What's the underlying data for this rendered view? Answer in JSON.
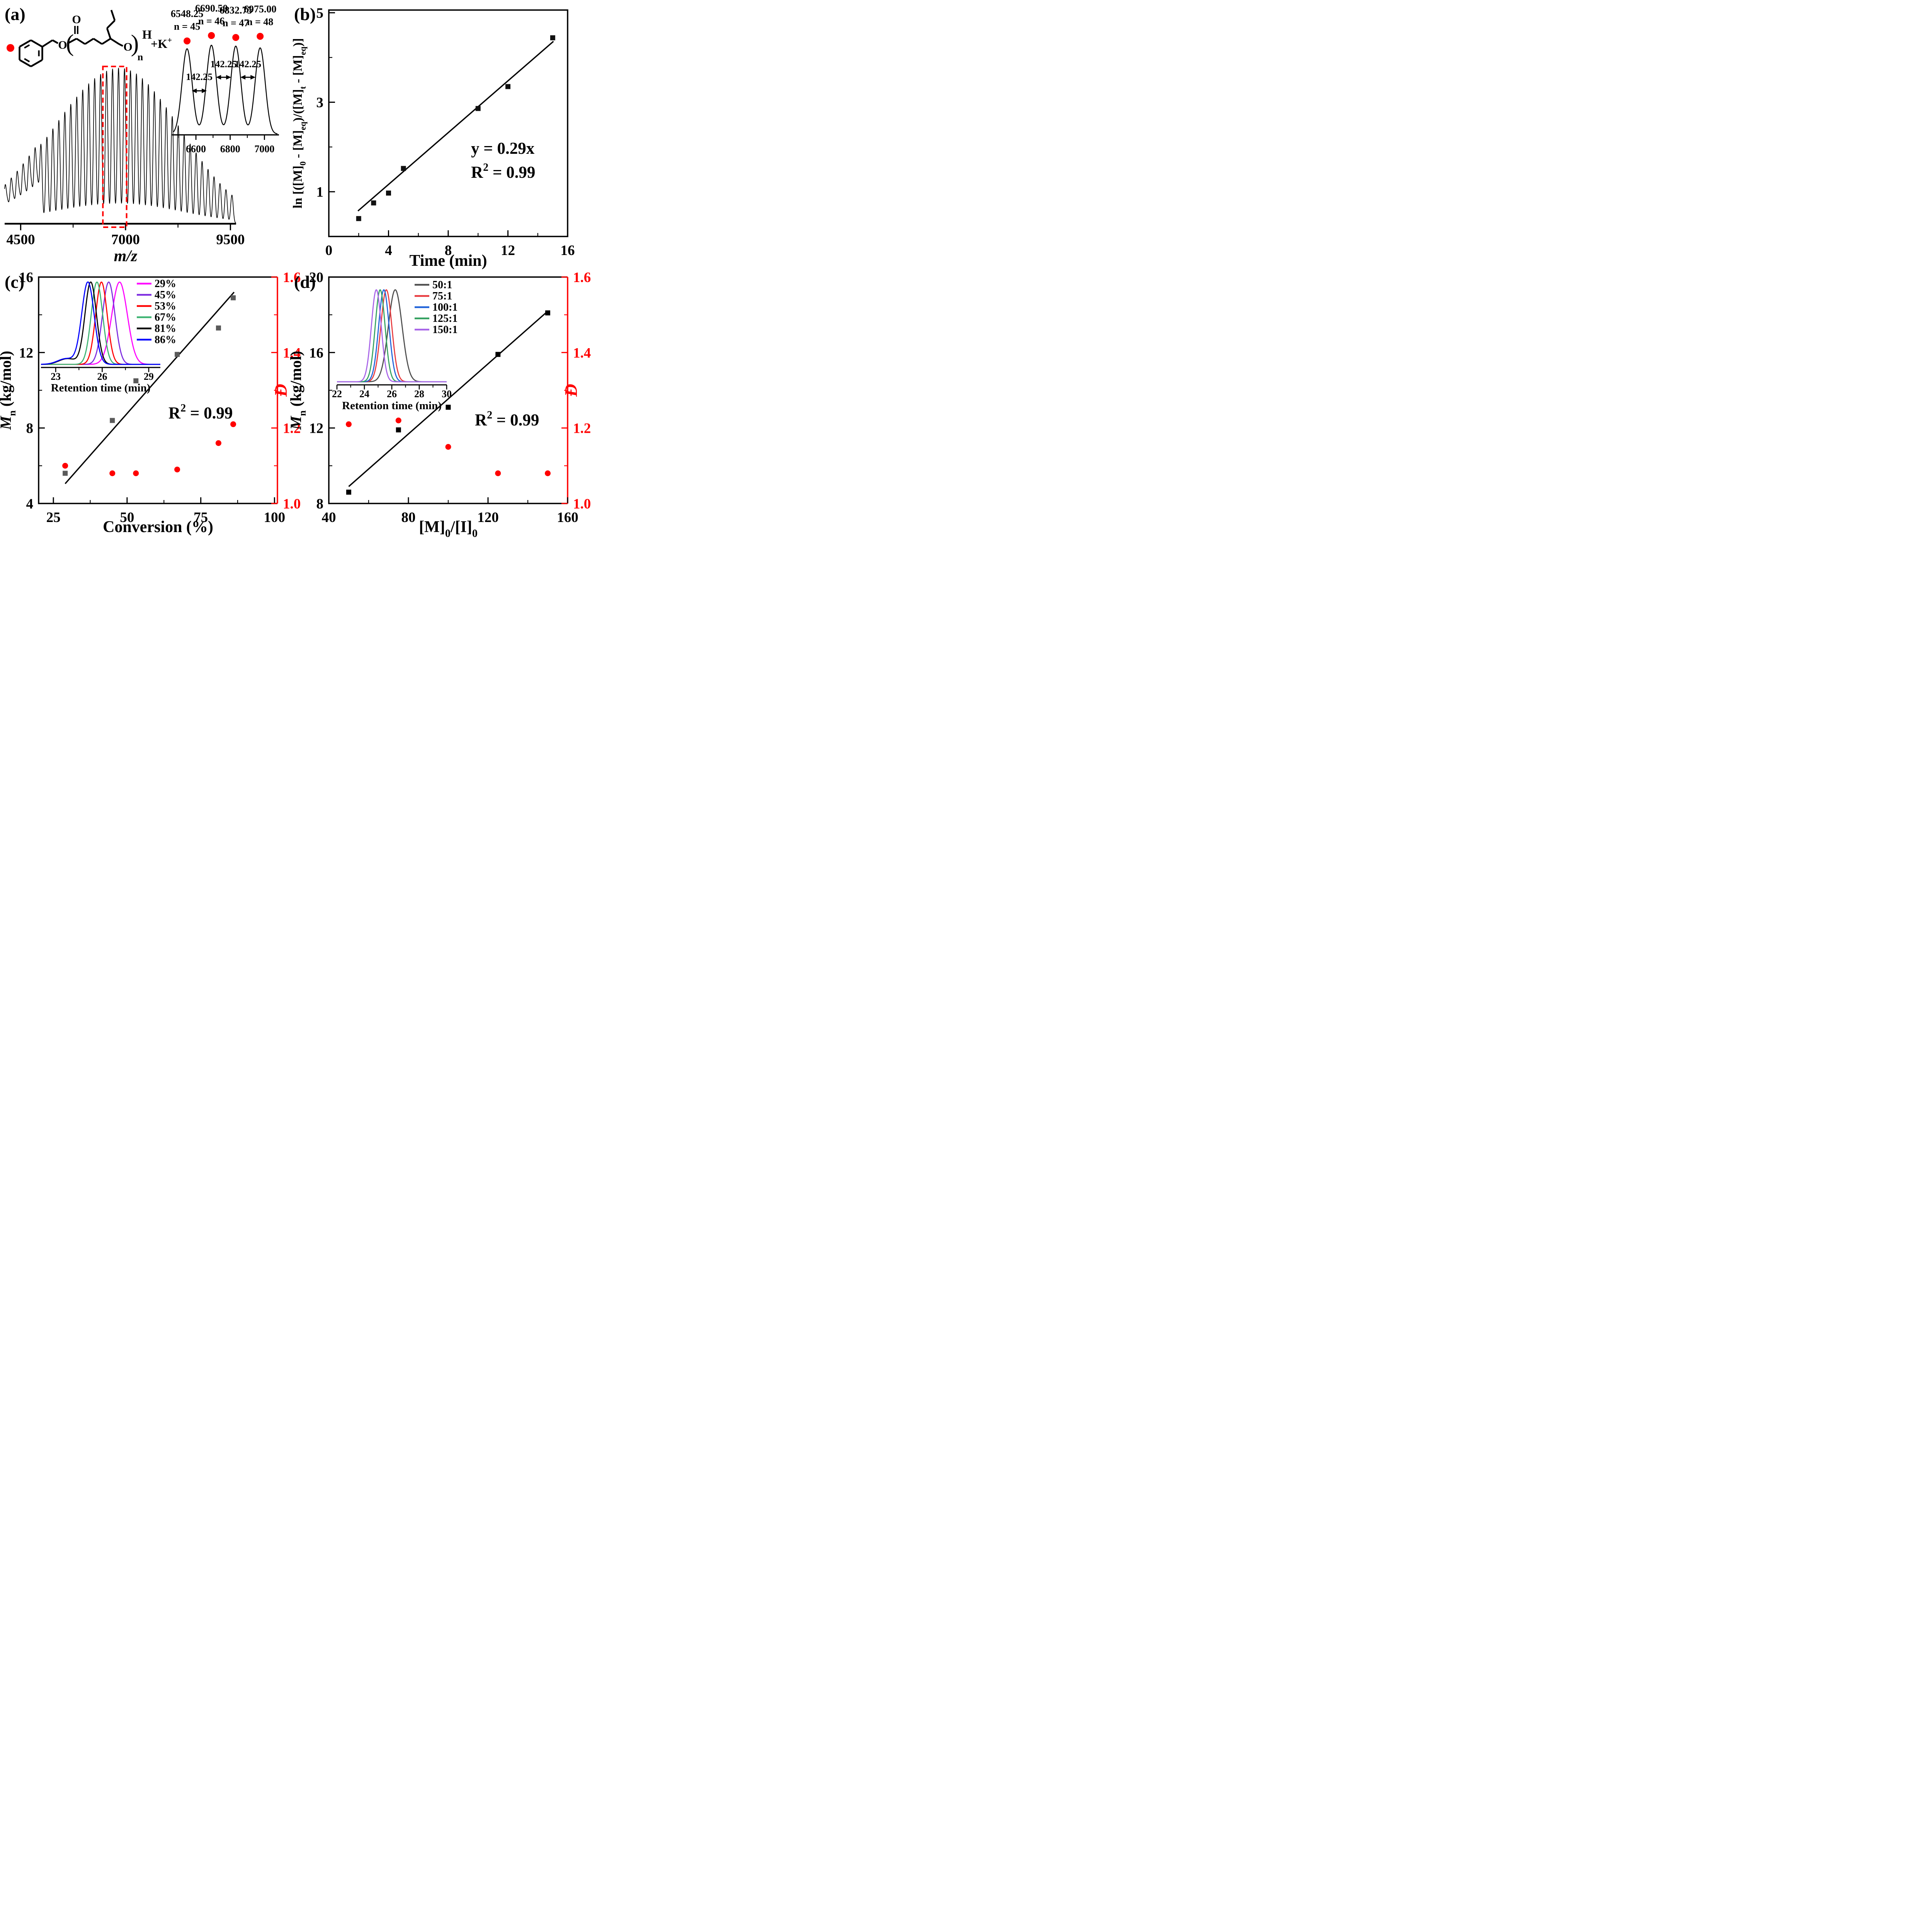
{
  "figure": {
    "background": "#ffffff",
    "panel_labels": {
      "a": "(a)",
      "b": "(b)",
      "c": "(c)",
      "d": "(d)"
    },
    "accent_red": "#FF0000"
  },
  "chart_data": [
    {
      "panel": "a",
      "type": "line",
      "xlabel": "~m/z~",
      "x_range": [
        4118,
        9635
      ],
      "x_ticks": [
        "4500",
        "7000",
        "9500"
      ],
      "x_tick_values": [
        4500,
        7000,
        9500
      ],
      "x_minor": [
        5750,
        8250
      ],
      "peak_comb": {
        "base_mz": 6548.25,
        "spacing": 142.25,
        "k_min": -17,
        "k_max": 21,
        "envelope_center": 6860,
        "sigma_left": 1600,
        "sigma_right": 1450,
        "noise_below": 4900,
        "noise_offset": 62,
        "noise_amp": 0.5
      },
      "highlight_box": {
        "mz1": 6460,
        "mz2": 7025,
        "color": "#FF0000"
      },
      "structure": {
        "marker_color": "#FF0000",
        "ester_o": "O",
        "carbonyl_o": "O",
        "chain_o": "O",
        "open_paren": "(",
        "close_paren": ")",
        "repeat_subscript": "n",
        "end_group": "H",
        "counterion": "+K^+^"
      },
      "inset": {
        "x_range": [
          6460,
          7085
        ],
        "x_ticks": [
          "6600",
          "6800",
          "7000"
        ],
        "x_tick_values": [
          6600,
          6800,
          7000
        ],
        "x_minor": [
          6500,
          6700,
          6900
        ],
        "peaks": [
          {
            "mz": 6548.25,
            "label": "6548.25",
            "n_label": "n = 45",
            "dy": 14,
            "h": 0.96
          },
          {
            "mz": 6690.5,
            "label": "6690.50",
            "n_label": "n = 46",
            "dy": 0,
            "h": 1.0
          },
          {
            "mz": 6832.75,
            "label": "6832.75",
            "n_label": "n = 47",
            "dy": 5,
            "h": 0.99
          },
          {
            "mz": 6975.0,
            "label": "6975.00",
            "n_label": "n = 48",
            "dy": 2,
            "h": 0.97
          }
        ],
        "spacing_label": "142.25",
        "dot_color": "#FF0000"
      }
    },
    {
      "panel": "b",
      "type": "scatter",
      "xlabel": "Time (min)",
      "ylabel": "ln [([M]_0_ - [M]_eq_)/([M]_t_ - [M]_eq_)]",
      "x_range": [
        0,
        16
      ],
      "y_range": [
        0,
        5.06
      ],
      "x_ticks": [
        "0",
        "4",
        "8",
        "12",
        "16"
      ],
      "x_tick_values": [
        0,
        4,
        8,
        12,
        16
      ],
      "x_minor": [
        2,
        6,
        10,
        14
      ],
      "y_ticks": [
        "1",
        "3",
        "5"
      ],
      "y_tick_values": [
        1,
        3,
        5
      ],
      "y_minor": [
        2,
        4
      ],
      "marker_color": "#111111",
      "points": [
        [
          2,
          0.4
        ],
        [
          3,
          0.75
        ],
        [
          4,
          0.97
        ],
        [
          5,
          1.52
        ],
        [
          10,
          2.86
        ],
        [
          12,
          3.35
        ],
        [
          15,
          4.44
        ]
      ],
      "fit": {
        "x1": 1.95,
        "y1": 0.57,
        "x2": 15.05,
        "y2": 4.36
      },
      "annotations": [
        "y = 0.29x",
        "R^2^ = 0.99"
      ]
    },
    {
      "panel": "c",
      "type": "scatter",
      "xlabel": "Conversion (%)",
      "ylabel": "~M~_n_ (kg/mol)",
      "ylabel_right": "Đ",
      "x_range": [
        20,
        101
      ],
      "y_range": [
        4,
        16
      ],
      "y_range_right": [
        1.0,
        1.6
      ],
      "x_ticks": [
        "25",
        "50",
        "75",
        "100"
      ],
      "x_tick_values": [
        25,
        50,
        75,
        100
      ],
      "x_minor": [
        37.5,
        62.5,
        87.5
      ],
      "y_ticks": [
        "4",
        "8",
        "12",
        "16"
      ],
      "y_tick_values": [
        4,
        8,
        12,
        16
      ],
      "y_minor": [
        6,
        10,
        14
      ],
      "y_ticks_right": [
        "1.0",
        "1.2",
        "1.4",
        "1.6"
      ],
      "y_tick_values_right": [
        1.0,
        1.2,
        1.4,
        1.6
      ],
      "y_minor_right": [
        1.1,
        1.3,
        1.5
      ],
      "square_color": "#5A5A5A",
      "circle_color": "#FF0000",
      "squares_Mn": [
        [
          29,
          5.6
        ],
        [
          45,
          8.4
        ],
        [
          53,
          10.5
        ],
        [
          67,
          11.9
        ],
        [
          81,
          13.3
        ],
        [
          86,
          14.9
        ]
      ],
      "circles_D": [
        [
          29,
          1.1
        ],
        [
          45,
          1.08
        ],
        [
          53,
          1.08
        ],
        [
          67,
          1.09
        ],
        [
          81,
          1.16
        ],
        [
          86,
          1.21
        ]
      ],
      "fit": {
        "x1": 29,
        "y1": 5.05,
        "x2": 86.3,
        "y2": 15.2
      },
      "annotations": [
        "R^2^ = 0.99"
      ],
      "inset": {
        "xlabel": "Retention time (min)",
        "x_range": [
          22.05,
          29.75
        ],
        "x_ticks": [
          "23",
          "26",
          "29"
        ],
        "x_tick_values": [
          23,
          26,
          29
        ],
        "x_minor": [
          24.5,
          27.5
        ],
        "curves": [
          {
            "label": "29%",
            "color": "#FF00FF",
            "peak": 27.12,
            "sigma": 0.5
          },
          {
            "label": "45%",
            "color": "#7D2BE0",
            "peak": 26.42,
            "sigma": 0.4
          },
          {
            "label": "53%",
            "color": "#FF0000",
            "peak": 25.95,
            "sigma": 0.37
          },
          {
            "label": "67%",
            "color": "#3CB371",
            "peak": 25.66,
            "sigma": 0.37
          },
          {
            "label": "81%",
            "color": "#000000",
            "peak": 25.26,
            "sigma": 0.37,
            "shoulder": {
              "dx": -1.5,
              "amp": 0.07,
              "sigma": 0.55
            }
          },
          {
            "label": "86%",
            "color": "#0000FF",
            "peak": 25.08,
            "sigma": 0.4,
            "shoulder": {
              "dx": -1.4,
              "amp": 0.07,
              "sigma": 0.55
            }
          }
        ]
      }
    },
    {
      "panel": "d",
      "type": "scatter",
      "xlabel": "[M]_0_/[I]_0_",
      "ylabel": "~M~_n_ (kg/mol)",
      "ylabel_right": "Đ",
      "x_range": [
        40,
        160
      ],
      "y_range": [
        8,
        20
      ],
      "y_range_right": [
        1.0,
        1.6
      ],
      "x_ticks": [
        "40",
        "80",
        "120",
        "160"
      ],
      "x_tick_values": [
        40,
        80,
        120,
        160
      ],
      "x_minor": [
        60,
        100,
        140
      ],
      "y_ticks": [
        "8",
        "12",
        "16",
        "20"
      ],
      "y_tick_values": [
        8,
        12,
        16,
        20
      ],
      "y_minor": [
        10,
        14,
        18
      ],
      "y_ticks_right": [
        "1.0",
        "1.2",
        "1.4",
        "1.6"
      ],
      "y_tick_values_right": [
        1.0,
        1.2,
        1.4,
        1.6
      ],
      "y_minor_right": [
        1.1,
        1.3,
        1.5
      ],
      "square_color": "#000000",
      "circle_color": "#FF0000",
      "squares_Mn": [
        [
          50,
          8.6
        ],
        [
          75,
          11.9
        ],
        [
          100,
          13.1
        ],
        [
          125,
          15.9
        ],
        [
          150,
          18.1
        ]
      ],
      "circles_D": [
        [
          50,
          1.21
        ],
        [
          75,
          1.22
        ],
        [
          100,
          1.15
        ],
        [
          125,
          1.08
        ],
        [
          150,
          1.08
        ]
      ],
      "fit": {
        "x1": 50,
        "y1": 8.9,
        "x2": 149.7,
        "y2": 18.16
      },
      "annotations": [
        "R^2^ = 0.99"
      ],
      "inset": {
        "xlabel": "Retention time (min)",
        "x_range": [
          22,
          30
        ],
        "x_ticks": [
          "22",
          "24",
          "26",
          "28",
          "30"
        ],
        "x_tick_values": [
          22,
          24,
          26,
          28,
          30
        ],
        "x_minor": [
          23,
          25,
          27,
          29
        ],
        "curves": [
          {
            "label": "50:1",
            "color": "#4D4D4D",
            "peak": 26.25,
            "sigma": 0.5
          },
          {
            "label": "75:1",
            "color": "#E8393D",
            "peak": 25.6,
            "sigma": 0.4
          },
          {
            "label": "100:1",
            "color": "#1F62D9",
            "peak": 25.42,
            "sigma": 0.38
          },
          {
            "label": "125:1",
            "color": "#33A05F",
            "peak": 25.15,
            "sigma": 0.36
          },
          {
            "label": "150:1",
            "color": "#A763E8",
            "peak": 24.87,
            "sigma": 0.36
          }
        ]
      }
    }
  ]
}
